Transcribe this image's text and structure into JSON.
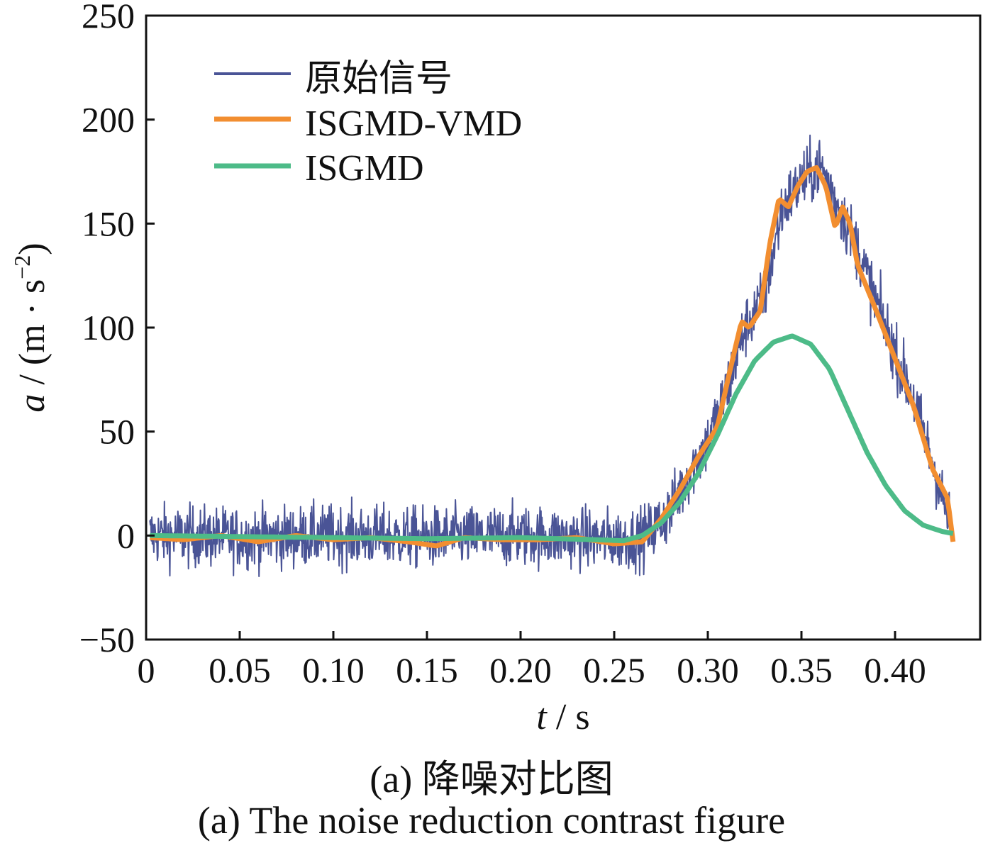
{
  "chart_data": {
    "type": "line",
    "title": "",
    "xlabel_var": "t",
    "xlabel_unit": " / s",
    "ylabel_var": "a",
    "ylabel_unit_pre": " / (m · s",
    "ylabel_unit_sup": "−2",
    "ylabel_unit_post": ")",
    "xlim": [
      0,
      0.43
    ],
    "ylim": [
      -50,
      250
    ],
    "grid": false,
    "legend_position": "top-left",
    "xticks": [
      {
        "value": 0,
        "label": "0"
      },
      {
        "value": 0.05,
        "label": "0.05"
      },
      {
        "value": 0.1,
        "label": "0.10"
      },
      {
        "value": 0.15,
        "label": "0.15"
      },
      {
        "value": 0.2,
        "label": "0.20"
      },
      {
        "value": 0.25,
        "label": "0.25"
      },
      {
        "value": 0.3,
        "label": "0.30"
      },
      {
        "value": 0.35,
        "label": "0.35"
      },
      {
        "value": 0.4,
        "label": "0.40"
      }
    ],
    "yticks": [
      {
        "value": -50,
        "label": "−50"
      },
      {
        "value": 0,
        "label": "0"
      },
      {
        "value": 50,
        "label": "50"
      },
      {
        "value": 100,
        "label": "100"
      },
      {
        "value": 150,
        "label": "150"
      },
      {
        "value": 200,
        "label": "200"
      },
      {
        "value": 250,
        "label": "250"
      }
    ],
    "series": [
      {
        "name": "原始信号",
        "color": "#4a5496",
        "noise_amplitude": 20,
        "x": [
          0.002,
          0.05,
          0.1,
          0.15,
          0.2,
          0.25,
          0.265,
          0.27,
          0.28,
          0.29,
          0.3,
          0.31,
          0.32,
          0.33,
          0.34,
          0.35,
          0.36,
          0.37,
          0.38,
          0.39,
          0.4,
          0.41,
          0.42,
          0.43
        ],
        "values": [
          0,
          -1,
          0,
          -1,
          0,
          -2,
          -1,
          2,
          12,
          30,
          45,
          70,
          100,
          115,
          158,
          170,
          178,
          158,
          138,
          112,
          88,
          65,
          35,
          3
        ]
      },
      {
        "name": "ISGMD-VMD",
        "color": "#f28e30",
        "x": [
          0.002,
          0.02,
          0.04,
          0.06,
          0.08,
          0.1,
          0.12,
          0.14,
          0.155,
          0.17,
          0.19,
          0.21,
          0.23,
          0.25,
          0.265,
          0.275,
          0.285,
          0.295,
          0.305,
          0.312,
          0.318,
          0.322,
          0.328,
          0.333,
          0.338,
          0.343,
          0.348,
          0.353,
          0.358,
          0.363,
          0.368,
          0.372,
          0.376,
          0.38,
          0.39,
          0.4,
          0.41,
          0.42,
          0.428,
          0.431
        ],
        "values": [
          -1,
          -2,
          0,
          -3,
          0,
          -2,
          -1,
          -3,
          -5,
          -1,
          -2,
          -2,
          -1,
          -4,
          -3,
          8,
          22,
          38,
          52,
          80,
          103,
          100,
          108,
          140,
          162,
          158,
          168,
          175,
          177,
          168,
          148,
          158,
          150,
          130,
          108,
          85,
          62,
          32,
          18,
          -3
        ]
      },
      {
        "name": "ISGMD",
        "color": "#4dbb88",
        "x": [
          0.002,
          0.05,
          0.1,
          0.15,
          0.2,
          0.24,
          0.255,
          0.265,
          0.275,
          0.285,
          0.295,
          0.305,
          0.315,
          0.325,
          0.335,
          0.345,
          0.355,
          0.365,
          0.375,
          0.385,
          0.395,
          0.405,
          0.415,
          0.425,
          0.431
        ],
        "values": [
          0,
          -0.5,
          -1,
          -1.5,
          -1,
          -2,
          -2.5,
          0,
          6,
          16,
          30,
          48,
          68,
          84,
          93,
          96,
          92,
          80,
          60,
          40,
          24,
          12,
          5,
          2,
          1
        ]
      }
    ]
  },
  "caption_cn": "(a)  降噪对比图",
  "caption_en": "(a)  The noise reduction contrast figure"
}
